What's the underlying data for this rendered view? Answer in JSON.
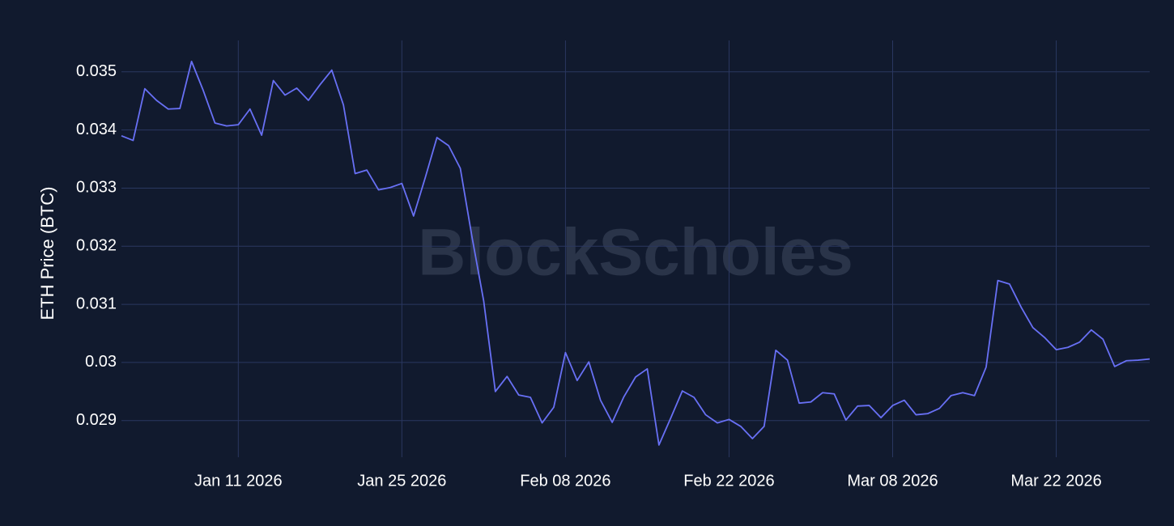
{
  "chart_data": {
    "type": "line",
    "y_label": "ETH Price (BTC)",
    "watermark": "BlockScholes",
    "x": [
      "2026-01-01",
      "2026-01-02",
      "2026-01-03",
      "2026-01-04",
      "2026-01-05",
      "2026-01-06",
      "2026-01-07",
      "2026-01-08",
      "2026-01-09",
      "2026-01-10",
      "2026-01-11",
      "2026-01-12",
      "2026-01-13",
      "2026-01-14",
      "2026-01-15",
      "2026-01-16",
      "2026-01-17",
      "2026-01-18",
      "2026-01-19",
      "2026-01-20",
      "2026-01-21",
      "2026-01-22",
      "2026-01-23",
      "2026-01-24",
      "2026-01-25",
      "2026-01-26",
      "2026-01-27",
      "2026-01-28",
      "2026-01-29",
      "2026-01-30",
      "2026-01-31",
      "2026-02-01",
      "2026-02-02",
      "2026-02-03",
      "2026-02-04",
      "2026-02-05",
      "2026-02-06",
      "2026-02-07",
      "2026-02-08",
      "2026-02-09",
      "2026-02-10",
      "2026-02-11",
      "2026-02-12",
      "2026-02-13",
      "2026-02-14",
      "2026-02-15",
      "2026-02-16",
      "2026-02-17",
      "2026-02-18",
      "2026-02-19",
      "2026-02-20",
      "2026-02-21",
      "2026-02-22",
      "2026-02-23",
      "2026-02-24",
      "2026-02-25",
      "2026-02-26",
      "2026-02-27",
      "2026-02-28",
      "2026-03-01",
      "2026-03-02",
      "2026-03-03",
      "2026-03-04",
      "2026-03-05",
      "2026-03-06",
      "2026-03-07",
      "2026-03-08",
      "2026-03-09",
      "2026-03-10",
      "2026-03-11",
      "2026-03-12",
      "2026-03-13",
      "2026-03-14",
      "2026-03-15",
      "2026-03-16",
      "2026-03-17",
      "2026-03-18",
      "2026-03-19",
      "2026-03-20",
      "2026-03-21",
      "2026-03-22",
      "2026-03-23",
      "2026-03-24",
      "2026-03-25",
      "2026-03-26",
      "2026-03-27",
      "2026-03-28",
      "2026-03-29",
      "2026-03-30"
    ],
    "series": [
      {
        "color": "#6870f5",
        "values": [
          0.0339,
          0.03382,
          0.03471,
          0.03451,
          0.03436,
          0.03437,
          0.03518,
          0.03468,
          0.03412,
          0.03407,
          0.03409,
          0.03436,
          0.03391,
          0.03485,
          0.0346,
          0.03472,
          0.03451,
          0.03478,
          0.03503,
          0.03443,
          0.03325,
          0.03331,
          0.03297,
          0.03301,
          0.03308,
          0.03252,
          0.03318,
          0.03387,
          0.03373,
          0.03334,
          0.03216,
          0.03106,
          0.0295,
          0.02976,
          0.02944,
          0.0294,
          0.02896,
          0.02923,
          0.03017,
          0.02969,
          0.03001,
          0.02935,
          0.02897,
          0.02941,
          0.02975,
          0.02989,
          0.02858,
          0.02904,
          0.02951,
          0.0294,
          0.0291,
          0.02896,
          0.02902,
          0.0289,
          0.02869,
          0.0289,
          0.03021,
          0.03004,
          0.0293,
          0.02932,
          0.02948,
          0.02946,
          0.02901,
          0.02925,
          0.02926,
          0.02905,
          0.02926,
          0.02935,
          0.0291,
          0.02912,
          0.02921,
          0.02943,
          0.02948,
          0.02943,
          0.02992,
          0.03141,
          0.03135,
          0.03095,
          0.0306,
          0.03043,
          0.03022,
          0.03026,
          0.03035,
          0.03056,
          0.0304,
          0.02993,
          0.03003,
          0.03004,
          0.03006
        ]
      }
    ],
    "xlim": [
      "2026-01-01",
      "2026-03-30"
    ],
    "xticks": [
      {
        "value": "2026-01-11",
        "label": "Jan 11 2026"
      },
      {
        "value": "2026-01-25",
        "label": "Jan 25 2026"
      },
      {
        "value": "2026-02-08",
        "label": "Feb 08 2026"
      },
      {
        "value": "2026-02-22",
        "label": "Feb 22 2026"
      },
      {
        "value": "2026-03-08",
        "label": "Mar 08 2026"
      },
      {
        "value": "2026-03-22",
        "label": "Mar 22 2026"
      }
    ],
    "ylim": [
      0.02837,
      0.03554
    ],
    "yticks": [
      0.029,
      0.03,
      0.031,
      0.032,
      0.033,
      0.034,
      0.035
    ],
    "grid": true
  }
}
